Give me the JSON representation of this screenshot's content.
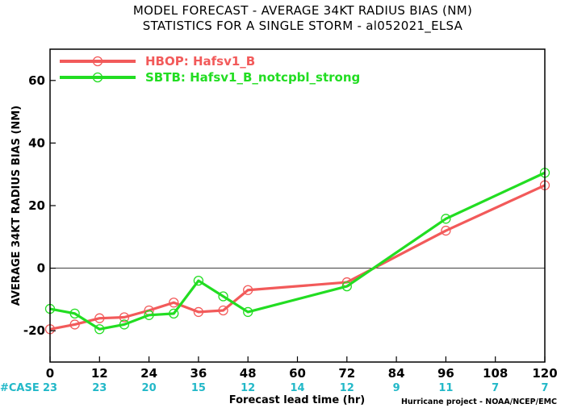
{
  "chart_data": {
    "type": "line",
    "title": "MODEL FORECAST - AVERAGE 34KT RADIUS BIAS (NM)",
    "subtitle": "STATISTICS FOR A SINGLE STORM - al052021_ELSA",
    "xlabel": "Forecast lead time (hr)",
    "ylabel": "AVERAGE 34KT RADIUS BIAS (NM)",
    "xlim": [
      0,
      120
    ],
    "ylim": [
      -30,
      70
    ],
    "x_ticks": [
      0,
      12,
      24,
      36,
      48,
      60,
      72,
      84,
      96,
      108,
      120
    ],
    "y_ticks": [
      -20,
      0,
      20,
      40,
      60
    ],
    "zero_line": true,
    "legend_position": "top-left",
    "series": [
      {
        "name": "HBOP: Hafsv1_B",
        "color": "#f25a5a",
        "x": [
          0,
          6,
          12,
          18,
          24,
          30,
          36,
          42,
          48,
          72,
          96,
          120
        ],
        "y": [
          -19.5,
          -18,
          -16,
          -15.7,
          -13.5,
          -11,
          -14,
          -13.5,
          -7,
          -4.5,
          12,
          26.5
        ]
      },
      {
        "name": "SBTB: Hafsv1_B_notcpbl_strong",
        "color": "#22dd22",
        "x": [
          0,
          6,
          12,
          18,
          24,
          30,
          36,
          42,
          48,
          72,
          96,
          120
        ],
        "y": [
          -13,
          -14.5,
          -19.5,
          -18,
          -15,
          -14.5,
          -4,
          -9,
          -14,
          -5.8,
          15.8,
          30.5
        ]
      }
    ],
    "case_label": "#CASE",
    "case_x": [
      0,
      12,
      24,
      36,
      48,
      60,
      72,
      84,
      96,
      108,
      120
    ],
    "case_counts": [
      "23",
      "23",
      "20",
      "15",
      "12",
      "14",
      "12",
      "9",
      "11",
      "7",
      "7"
    ],
    "credit": "Hurricane project - NOAA/NCEP/EMC"
  },
  "colors": {
    "axis": "#000000",
    "case_text": "#22b8c8",
    "zero_line": "#000000"
  }
}
